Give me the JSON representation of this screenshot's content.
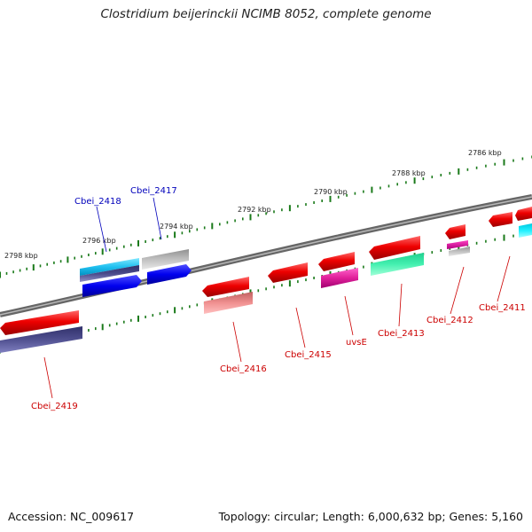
{
  "title": "Clostridium beijerinckii NCIMB 8052, complete genome",
  "footer": {
    "accession": "Accession: NC_009617",
    "topology": "Topology: circular; Length: 6,000,632 bp; Genes: 5,160"
  },
  "colors": {
    "backbone": "#7a7a7a",
    "tick": "#1a7a1a",
    "label_red": "#cc0000",
    "label_blue": "#0000bb"
  },
  "ticks": [
    {
      "label": "2786 kbp"
    },
    {
      "label": "2788 kbp"
    },
    {
      "label": "2790 kbp"
    },
    {
      "label": "2792 kbp"
    },
    {
      "label": "2794 kbp"
    },
    {
      "label": "2796 kbp"
    },
    {
      "label": "2798 kbp"
    }
  ],
  "genes": [
    {
      "label": "Cbei_2411",
      "color": "#cc0000"
    },
    {
      "label": "Cbei_2412",
      "color": "#cc0000"
    },
    {
      "label": "Cbei_2413",
      "color": "#cc0000"
    },
    {
      "label": "uvsE",
      "color": "#cc0000"
    },
    {
      "label": "Cbei_2415",
      "color": "#cc0000"
    },
    {
      "label": "Cbei_2416",
      "color": "#cc0000"
    },
    {
      "label": "Cbei_2417",
      "color": "#0000bb"
    },
    {
      "label": "Cbei_2418",
      "color": "#0000bb"
    },
    {
      "label": "Cbei_2419",
      "color": "#cc0000"
    }
  ]
}
